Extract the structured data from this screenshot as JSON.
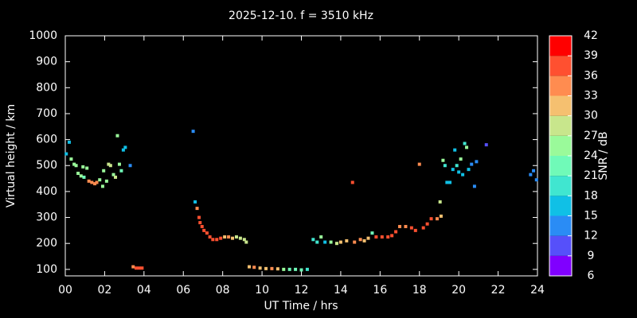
{
  "chart_data": {
    "type": "scatter",
    "title": "2025-12-10. f = 3510 kHz",
    "x_label": "UT Time / hrs",
    "y_label": "Virtual height / km",
    "colorbar_label": "SNR / dB",
    "xlim": [
      0,
      24
    ],
    "xticks": [
      {
        "value": 0,
        "label": "00"
      },
      {
        "value": 2,
        "label": "02"
      },
      {
        "value": 4,
        "label": "04"
      },
      {
        "value": 6,
        "label": "06"
      },
      {
        "value": 8,
        "label": "08"
      },
      10,
      12,
      14,
      16,
      18,
      20,
      22,
      24
    ],
    "ylim": [
      75,
      1000
    ],
    "yticks": [
      100,
      200,
      300,
      400,
      500,
      600,
      700,
      800,
      900,
      1000
    ],
    "clim": [
      6,
      42
    ],
    "cticks": [
      6,
      9,
      12,
      15,
      18,
      21,
      24,
      27,
      30,
      33,
      36,
      39,
      42
    ],
    "colormap": [
      "#8000ff",
      "#5650fa",
      "#2a8cf5",
      "#10c0e6",
      "#40e6d0",
      "#70fab8",
      "#9afa9a",
      "#c8e68c",
      "#f5c070",
      "#ff8c50",
      "#ff5030",
      "#ff0000"
    ],
    "series": [
      {
        "name": "SNR",
        "x": [
          0.05,
          0.2,
          0.3,
          0.45,
          0.55,
          0.65,
          0.8,
          0.9,
          0.95,
          1.1,
          1.2,
          1.35,
          1.5,
          1.6,
          1.75,
          1.9,
          1.95,
          2.1,
          2.2,
          2.3,
          2.45,
          2.55,
          2.65,
          2.75,
          2.85,
          2.95,
          3.05,
          3.3,
          3.45,
          3.6,
          3.75,
          3.9,
          6.5,
          6.6,
          6.7,
          6.8,
          6.85,
          6.95,
          7.05,
          7.2,
          7.35,
          7.5,
          7.7,
          7.9,
          8.1,
          8.3,
          8.5,
          8.7,
          8.9,
          9.1,
          9.2,
          9.35,
          9.6,
          9.9,
          10.2,
          10.5,
          10.8,
          11.1,
          11.4,
          11.7,
          12.0,
          12.3,
          12.6,
          12.8,
          13.0,
          13.2,
          13.5,
          13.8,
          14.0,
          14.3,
          14.6,
          14.7,
          15.0,
          15.2,
          15.4,
          15.6,
          15.8,
          16.1,
          16.4,
          16.6,
          16.8,
          17.0,
          17.3,
          17.6,
          17.8,
          18.0,
          18.2,
          18.4,
          18.6,
          18.9,
          19.1,
          19.05,
          19.2,
          19.3,
          19.4,
          19.55,
          19.7,
          19.8,
          19.9,
          20.0,
          20.1,
          20.2,
          20.3,
          20.4,
          20.5,
          20.65,
          20.8,
          20.9,
          21.4,
          23.65,
          23.8,
          23.95
        ],
        "values": [
          545,
          590,
          525,
          505,
          500,
          470,
          460,
          495,
          455,
          490,
          440,
          435,
          430,
          435,
          445,
          420,
          480,
          440,
          505,
          500,
          465,
          455,
          615,
          505,
          480,
          560,
          570,
          500,
          110,
          105,
          105,
          105,
          632,
          360,
          335,
          300,
          280,
          265,
          250,
          240,
          225,
          215,
          215,
          220,
          225,
          225,
          220,
          225,
          220,
          215,
          205,
          110,
          108,
          105,
          103,
          103,
          102,
          100,
          100,
          100,
          98,
          100,
          215,
          205,
          225,
          205,
          205,
          200,
          205,
          210,
          435,
          205,
          215,
          210,
          220,
          240,
          225,
          225,
          225,
          230,
          245,
          265,
          265,
          260,
          250,
          505,
          260,
          275,
          295,
          295,
          305,
          360,
          520,
          500,
          435,
          435,
          485,
          560,
          500,
          475,
          525,
          465,
          585,
          570,
          485,
          505,
          420,
          515,
          580,
          465,
          480,
          445
        ],
        "snr": [
          15,
          15,
          24,
          24,
          24,
          24,
          24,
          24,
          21,
          24,
          33,
          33,
          33,
          33,
          24,
          24,
          24,
          24,
          27,
          27,
          24,
          27,
          24,
          24,
          21,
          15,
          15,
          12,
          33,
          36,
          36,
          36,
          12,
          15,
          33,
          36,
          36,
          36,
          36,
          36,
          36,
          36,
          36,
          36,
          30,
          33,
          30,
          27,
          27,
          27,
          27,
          30,
          33,
          30,
          30,
          33,
          30,
          24,
          21,
          21,
          21,
          18,
          18,
          18,
          24,
          15,
          24,
          27,
          30,
          30,
          36,
          33,
          33,
          30,
          30,
          21,
          36,
          36,
          36,
          36,
          36,
          33,
          33,
          36,
          36,
          33,
          36,
          36,
          36,
          33,
          30,
          27,
          24,
          18,
          15,
          15,
          15,
          15,
          18,
          15,
          24,
          15,
          18,
          24,
          15,
          12,
          12,
          12,
          9,
          12,
          12,
          12
        ]
      }
    ]
  }
}
